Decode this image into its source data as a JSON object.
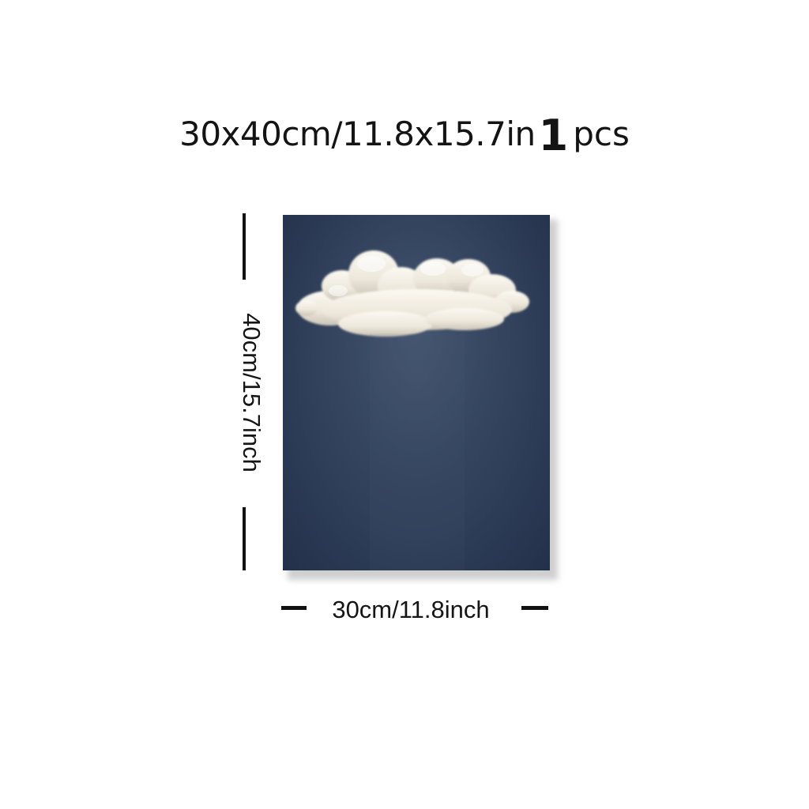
{
  "product": {
    "size_title": "30x40cm/11.8x15.7in",
    "quantity_number": "1",
    "quantity_unit": "pcs"
  },
  "dimensions": {
    "height_label": "40cm/15.7inch",
    "width_label": "30cm/11.8inch"
  },
  "artwork": {
    "subject": "cloud-painting",
    "background_color": "#30405a",
    "cloud_color": "#f2efe6"
  }
}
